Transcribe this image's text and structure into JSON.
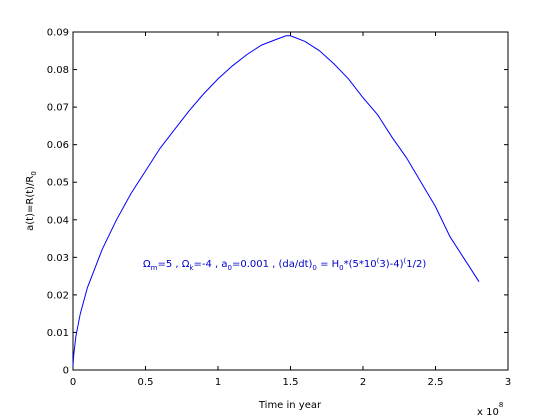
{
  "chart_data": {
    "type": "line",
    "title": "",
    "xlabel": "Time in year",
    "ylabel": "a(t)=R(t)/R",
    "ylabel_sub": "0",
    "x_multiplier": "x 10",
    "x_multiplier_exp": "8",
    "xlim": [
      0,
      3
    ],
    "ylim": [
      0,
      0.09
    ],
    "grid": false,
    "x_ticks": [
      "0",
      "0.5",
      "1",
      "1.5",
      "2",
      "2.5",
      "3"
    ],
    "y_ticks": [
      "0",
      "0.01",
      "0.02",
      "0.03",
      "0.04",
      "0.05",
      "0.06",
      "0.07",
      "0.08",
      "0.09"
    ],
    "annotation": {
      "s1": "Ω",
      "sub1": "m",
      "s2": "=5 , Ω",
      "sub2": "k",
      "s3": "=-4 , a",
      "sub3": "0",
      "s4": "=0.001 , (da/dt)",
      "sub4": "0",
      "s5": " = H",
      "sub5": "0",
      "s6": "*(5*10",
      "sup6": "(",
      "s7": "3)-4)",
      "sup7": "(",
      "s8": "1/2)"
    },
    "series": [
      {
        "color": "#0000ff",
        "x": [
          0,
          0.005,
          0.02,
          0.05,
          0.1,
          0.15,
          0.2,
          0.3,
          0.4,
          0.5,
          0.6,
          0.7,
          0.8,
          0.9,
          1.0,
          1.1,
          1.2,
          1.3,
          1.4,
          1.47,
          1.5,
          1.6,
          1.7,
          1.8,
          1.9,
          2.0,
          2.1,
          2.2,
          2.3,
          2.4,
          2.5,
          2.6,
          2.7,
          2.8
        ],
        "y": [
          0.001,
          0.004,
          0.009,
          0.015,
          0.022,
          0.027,
          0.032,
          0.04,
          0.047,
          0.053,
          0.059,
          0.064,
          0.069,
          0.0735,
          0.0775,
          0.081,
          0.084,
          0.0865,
          0.088,
          0.089,
          0.089,
          0.0875,
          0.085,
          0.0815,
          0.0775,
          0.0725,
          0.068,
          0.062,
          0.0565,
          0.05,
          0.0435,
          0.0355,
          0.0295,
          0.0235
        ]
      }
    ]
  }
}
